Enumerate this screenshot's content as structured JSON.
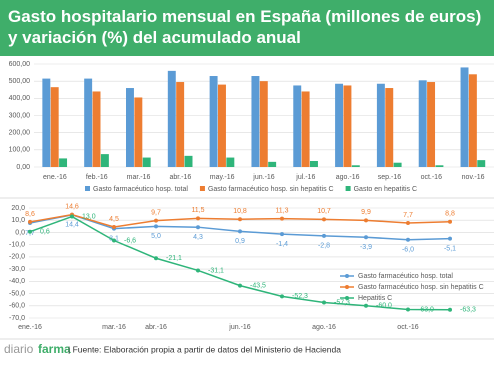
{
  "header": {
    "title": "Gasto hospitalario mensual en España (millones de euros) y variación (%) del acumulado anual"
  },
  "footer": {
    "logo_light": "diario",
    "logo_bold": "farma",
    "source": "| Fuente:  Elaboración propia a partir de datos del Ministerio de Hacienda"
  },
  "chart_data": [
    {
      "type": "bar",
      "categories": [
        "ene.-16",
        "feb.-16",
        "mar.-16",
        "abr.-16",
        "may.-16",
        "jun.-16",
        "jul.-16",
        "ago.-16",
        "sep.-16",
        "oct.-16",
        "nov.-16"
      ],
      "series": [
        {
          "name": "Gasto farmacéutico hosp. total",
          "color": "#5b9bd5",
          "values": [
            515,
            515,
            460,
            560,
            530,
            530,
            475,
            485,
            485,
            505,
            580
          ]
        },
        {
          "name": "Gasto farmacéutico hosp. sin hepatitis C",
          "color": "#ed7d31",
          "values": [
            465,
            440,
            405,
            495,
            480,
            500,
            440,
            475,
            460,
            495,
            540
          ]
        },
        {
          "name": "Gasto en hepatitis C",
          "color": "#2fb57a",
          "values": [
            50,
            75,
            55,
            65,
            55,
            30,
            35,
            10,
            25,
            10,
            40
          ]
        }
      ],
      "ylim": [
        0,
        600
      ],
      "yticks": [
        {
          "value": 0,
          "label": "0,00"
        },
        {
          "value": 100,
          "label": "100,00"
        },
        {
          "value": 200,
          "label": "200,00"
        },
        {
          "value": 300,
          "label": "300,00"
        },
        {
          "value": 400,
          "label": "400,00"
        },
        {
          "value": 500,
          "label": "500,00"
        },
        {
          "value": 600,
          "label": "600,00"
        }
      ],
      "grid": true,
      "legend": "bottom"
    },
    {
      "type": "line",
      "categories": [
        "ene.-16",
        null,
        "mar.-16",
        "abr.-16",
        null,
        "jun.-16",
        null,
        "ago.-16",
        null,
        "oct.-16",
        null
      ],
      "series": [
        {
          "name": "Gasto farmacéutico hosp. total",
          "color": "#5b9bd5",
          "values": [
            7.7,
            14.4,
            3.1,
            5.0,
            4.3,
            0.9,
            -1.4,
            -2.8,
            -3.9,
            -6.0,
            -5.1
          ],
          "value_labels": [
            "7,7",
            "14,4",
            "3,1",
            "5,0",
            "4,3",
            "0,9",
            "-1,4",
            "-2,8",
            "-3,9",
            "-6,0",
            "-5,1"
          ]
        },
        {
          "name": "Gasto farmacéutico hosp. sin hepatitis C",
          "color": "#ed7d31",
          "values": [
            8.6,
            14.6,
            4.5,
            9.7,
            11.5,
            10.8,
            11.3,
            10.7,
            9.9,
            7.7,
            8.8
          ],
          "value_labels": [
            "8,6",
            "14,6",
            "4,5",
            "9,7",
            "11,5",
            "10,8",
            "11,3",
            "10,7",
            "9,9",
            "7,7",
            "8,8"
          ]
        },
        {
          "name": "Hepatitis C",
          "color": "#2fb57a",
          "values": [
            0.6,
            13.0,
            -6.6,
            -21.1,
            -31.1,
            -43.5,
            -52.3,
            -57.3,
            -60.0,
            -63.0,
            -63.3
          ],
          "value_labels": [
            "0,6",
            "13,0",
            "-6,6",
            "-21,1",
            "-31,1",
            "-43,5",
            "-52,3",
            "-57,3",
            "-60,0",
            "-63,0",
            "-63,3"
          ]
        }
      ],
      "ylim": [
        -70,
        20
      ],
      "yticks": [
        {
          "value": 20,
          "label": "20,0"
        },
        {
          "value": 10,
          "label": "10,0"
        },
        {
          "value": 0,
          "label": "0,0"
        },
        {
          "value": -10,
          "label": "-10,0"
        },
        {
          "value": -20,
          "label": "-20,0"
        },
        {
          "value": -30,
          "label": "-30,0"
        },
        {
          "value": -40,
          "label": "-40,0"
        },
        {
          "value": -50,
          "label": "-50,0"
        },
        {
          "value": -60,
          "label": "-60,0"
        },
        {
          "value": -70,
          "label": "-70,0"
        }
      ],
      "grid": true,
      "legend": "right"
    }
  ]
}
